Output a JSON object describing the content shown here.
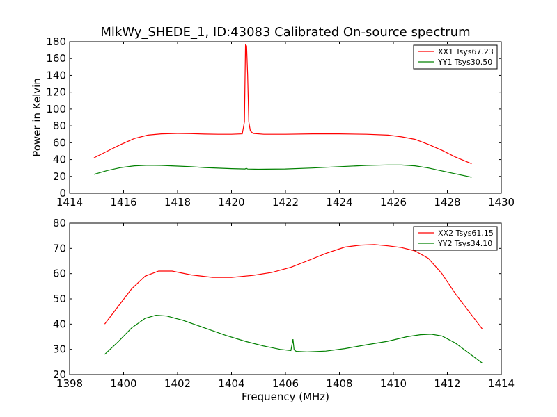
{
  "chart_data": [
    {
      "type": "line",
      "title": "MlkWy_SHEDE_1, ID:43083 Calibrated On-source spectrum",
      "xlabel": "",
      "ylabel": "Power in Kelvin",
      "xlim": [
        1414,
        1430
      ],
      "ylim": [
        0,
        180
      ],
      "xticks": [
        "1414",
        "1416",
        "1418",
        "1420",
        "1422",
        "1424",
        "1426",
        "1428",
        "1430"
      ],
      "yticks": [
        "0",
        "20",
        "40",
        "60",
        "80",
        "100",
        "120",
        "140",
        "160",
        "180"
      ],
      "legend_position": "top-right",
      "grid": false,
      "series": [
        {
          "name": "XX1 Tsys67.23",
          "color": "#ff0000",
          "x": [
            1414.9,
            1415.4,
            1415.9,
            1416.4,
            1416.9,
            1417.4,
            1418.0,
            1418.5,
            1419.0,
            1419.5,
            1420.0,
            1420.4,
            1420.48,
            1420.52,
            1420.56,
            1420.6,
            1420.64,
            1420.7,
            1420.8,
            1421.2,
            1422.0,
            1423.0,
            1424.0,
            1425.0,
            1425.8,
            1426.3,
            1426.8,
            1427.3,
            1427.8,
            1428.3,
            1428.9
          ],
          "y": [
            42,
            50,
            58,
            65,
            69,
            70.5,
            71,
            70.8,
            70.3,
            70,
            70,
            70.5,
            85,
            176,
            175,
            140,
            85,
            74,
            71,
            70,
            70,
            70.5,
            70.5,
            70,
            69,
            67,
            64,
            58,
            51,
            43,
            35
          ]
        },
        {
          "name": "YY1 Tsys30.50",
          "color": "#008000",
          "x": [
            1414.9,
            1415.4,
            1415.9,
            1416.4,
            1416.9,
            1417.4,
            1418.0,
            1418.5,
            1419.0,
            1419.5,
            1420.0,
            1420.5,
            1420.55,
            1420.6,
            1421.0,
            1422.0,
            1423.0,
            1424.0,
            1425.0,
            1425.8,
            1426.3,
            1426.8,
            1427.3,
            1427.8,
            1428.3,
            1428.9
          ],
          "y": [
            22.5,
            27,
            30.5,
            32.5,
            33.2,
            33,
            32.2,
            31.5,
            30.5,
            29.8,
            29.2,
            28.8,
            29.6,
            28.7,
            28.5,
            28.8,
            30,
            31.5,
            33,
            33.6,
            33.5,
            32.5,
            30,
            26.5,
            23,
            19
          ]
        }
      ]
    },
    {
      "type": "line",
      "title": "",
      "xlabel": "Frequency (MHz)",
      "ylabel": "",
      "xlim": [
        1398,
        1414
      ],
      "ylim": [
        20,
        80
      ],
      "xticks": [
        "1398",
        "1400",
        "1402",
        "1404",
        "1406",
        "1408",
        "1410",
        "1412",
        "1414"
      ],
      "yticks": [
        "20",
        "30",
        "40",
        "50",
        "60",
        "70",
        "80"
      ],
      "legend_position": "top-right",
      "grid": false,
      "series": [
        {
          "name": "XX2 Tsys61.15",
          "color": "#ff0000",
          "x": [
            1399.3,
            1399.8,
            1400.3,
            1400.8,
            1401.3,
            1401.8,
            1402.5,
            1403.3,
            1404.0,
            1404.8,
            1405.5,
            1406.2,
            1406.8,
            1407.5,
            1408.2,
            1408.8,
            1409.3,
            1409.8,
            1410.3,
            1410.8,
            1411.3,
            1411.8,
            1412.3,
            1412.8,
            1413.3
          ],
          "y": [
            40,
            47,
            54,
            59,
            61,
            61,
            59.5,
            58.5,
            58.5,
            59.3,
            60.5,
            62.5,
            65,
            68,
            70.5,
            71.3,
            71.5,
            71,
            70.3,
            69,
            66,
            60,
            52,
            45,
            38
          ]
        },
        {
          "name": "YY2 Tsys34.10",
          "color": "#008000",
          "x": [
            1399.3,
            1399.8,
            1400.3,
            1400.8,
            1401.2,
            1401.6,
            1402.2,
            1403.0,
            1403.8,
            1404.5,
            1405.2,
            1405.8,
            1406.2,
            1406.28,
            1406.32,
            1406.4,
            1406.8,
            1407.5,
            1408.2,
            1409.0,
            1409.8,
            1410.5,
            1411.0,
            1411.4,
            1411.8,
            1412.3,
            1412.8,
            1413.3
          ],
          "y": [
            28,
            33,
            38.5,
            42.3,
            43.5,
            43.2,
            41.5,
            38.5,
            35.5,
            33.2,
            31.3,
            30,
            29.5,
            34,
            29.8,
            29.2,
            29,
            29.3,
            30.3,
            31.8,
            33.2,
            35,
            35.8,
            36,
            35.3,
            32.5,
            28.5,
            24.5
          ]
        }
      ]
    }
  ]
}
